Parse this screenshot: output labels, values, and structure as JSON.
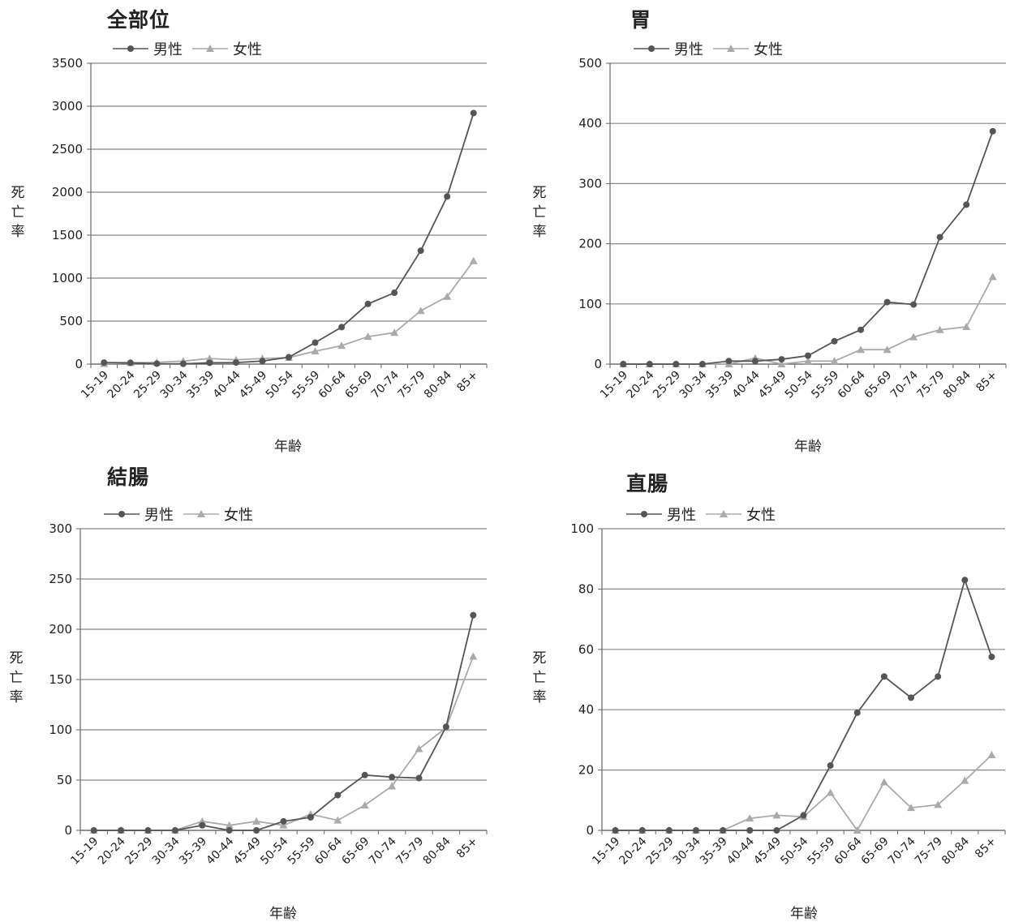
{
  "chart_data": [
    {
      "type": "line",
      "title": "全部位",
      "xlabel": "年齢",
      "ylabel": "死亡率",
      "ylim": [
        0,
        3500
      ],
      "yticks": [
        0,
        500,
        1000,
        1500,
        2000,
        2500,
        3000,
        3500
      ],
      "categories": [
        "15-19",
        "20-24",
        "25-29",
        "30-34",
        "35-39",
        "40-44",
        "45-49",
        "50-54",
        "55-59",
        "60-64",
        "65-69",
        "70-74",
        "75-79",
        "80-84",
        "85+"
      ],
      "series": [
        {
          "name": "男性",
          "color": "#555555",
          "marker": "circle",
          "values": [
            18,
            15,
            5,
            3,
            15,
            18,
            35,
            80,
            250,
            430,
            700,
            830,
            1320,
            1950,
            2920
          ]
        },
        {
          "name": "女性",
          "color": "#aaaaaa",
          "marker": "triangle",
          "values": [
            5,
            15,
            20,
            35,
            65,
            50,
            65,
            75,
            150,
            215,
            320,
            365,
            620,
            785,
            1200
          ]
        }
      ],
      "grid": true,
      "legend": "top-left"
    },
    {
      "type": "line",
      "title": "胃",
      "xlabel": "年齢",
      "ylabel": "死亡率",
      "ylim": [
        0,
        500
      ],
      "yticks": [
        0,
        100,
        200,
        300,
        400,
        500
      ],
      "categories": [
        "15-19",
        "20-24",
        "25-29",
        "30-34",
        "35-39",
        "40-44",
        "45-49",
        "50-54",
        "55-59",
        "60-64",
        "65-69",
        "70-74",
        "75-79",
        "80-84",
        "85+"
      ],
      "series": [
        {
          "name": "男性",
          "color": "#555555",
          "marker": "circle",
          "values": [
            0,
            0,
            0,
            0,
            5,
            5,
            8,
            14,
            38,
            57,
            103,
            99,
            211,
            265,
            387
          ]
        },
        {
          "name": "女性",
          "color": "#aaaaaa",
          "marker": "triangle",
          "values": [
            0,
            0,
            0,
            0,
            0,
            10,
            0,
            5,
            5,
            24,
            24,
            45,
            57,
            62,
            145
          ]
        }
      ],
      "grid": true,
      "legend": "top-left"
    },
    {
      "type": "line",
      "title": "結腸",
      "xlabel": "年齢",
      "ylabel": "死亡率",
      "ylim": [
        0,
        300
      ],
      "yticks": [
        0,
        50,
        100,
        150,
        200,
        250,
        300
      ],
      "categories": [
        "15-19",
        "20-24",
        "25-29",
        "30-34",
        "35-39",
        "40-44",
        "45-49",
        "50-54",
        "55-59",
        "60-64",
        "65-69",
        "70-74",
        "75-79",
        "80-84",
        "85+"
      ],
      "series": [
        {
          "name": "男性",
          "color": "#555555",
          "marker": "circle",
          "values": [
            0,
            0,
            0,
            0,
            5,
            0,
            0,
            9,
            13,
            35,
            55,
            53,
            52,
            103,
            214
          ]
        },
        {
          "name": "女性",
          "color": "#aaaaaa",
          "marker": "triangle",
          "values": [
            0,
            0,
            0,
            0,
            9,
            5,
            9,
            5,
            16,
            10,
            25,
            44,
            81,
            102,
            173
          ]
        }
      ],
      "grid": true,
      "legend": "top-left"
    },
    {
      "type": "line",
      "title": "直腸",
      "xlabel": "年齢",
      "ylabel": "死亡率",
      "ylim": [
        0,
        100
      ],
      "yticks": [
        0,
        20,
        40,
        60,
        80,
        100
      ],
      "categories": [
        "15-19",
        "20-24",
        "25-29",
        "30-34",
        "35-39",
        "40-44",
        "45-49",
        "50-54",
        "55-59",
        "60-64",
        "65-69",
        "70-74",
        "75-79",
        "80-84",
        "85+"
      ],
      "series": [
        {
          "name": "男性",
          "color": "#555555",
          "marker": "circle",
          "values": [
            0,
            0,
            0,
            0,
            0,
            0,
            0,
            5,
            21.5,
            39,
            51,
            44,
            51,
            83,
            57.5
          ]
        },
        {
          "name": "女性",
          "color": "#aaaaaa",
          "marker": "triangle",
          "values": [
            0,
            0,
            0,
            0,
            0,
            4,
            5,
            4.5,
            12.5,
            0,
            16,
            7.5,
            8.5,
            16.5,
            25
          ]
        }
      ],
      "grid": true,
      "legend": "top-left"
    }
  ]
}
